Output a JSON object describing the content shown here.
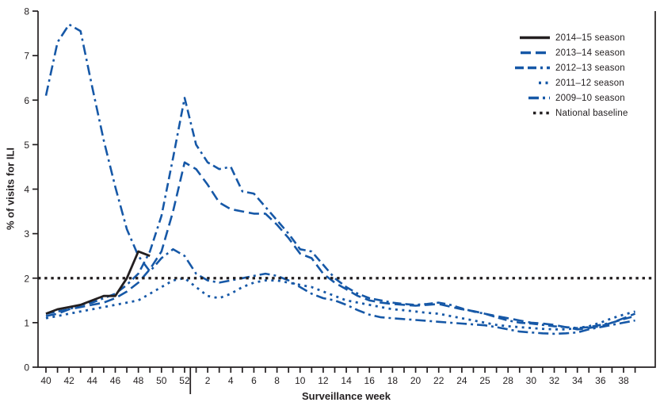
{
  "chart_data": {
    "type": "line",
    "title": "",
    "xlabel": "Surveillance week",
    "ylabel": "% of visits for ILI",
    "ylim": [
      0,
      8
    ],
    "grid": false,
    "legend_position": "top-right",
    "colors": {
      "blue": "#1658a7",
      "black": "#231f20"
    },
    "y_ticks": [
      0,
      1,
      2,
      3,
      4,
      5,
      6,
      7,
      8
    ],
    "x_tick_labels": [
      "40",
      "42",
      "44",
      "46",
      "48",
      "50",
      "52",
      "2",
      "4",
      "6",
      "8",
      "10",
      "12",
      "14",
      "16",
      "18",
      "20",
      "22",
      "24",
      "25",
      "28",
      "30",
      "32",
      "34",
      "36",
      "38"
    ],
    "weeks": [
      40,
      41,
      42,
      43,
      44,
      45,
      46,
      47,
      48,
      49,
      50,
      51,
      52,
      1,
      2,
      3,
      4,
      5,
      6,
      7,
      8,
      9,
      10,
      11,
      12,
      13,
      14,
      15,
      16,
      17,
      18,
      19,
      20,
      21,
      22,
      23,
      24,
      25,
      26,
      27,
      28,
      29,
      30,
      31,
      32,
      33,
      34,
      35,
      36,
      37,
      38,
      39
    ],
    "series": [
      {
        "name": "2014–15 season",
        "color": "black",
        "dash": null,
        "width": 2.8,
        "sample_len": 38,
        "values": [
          1.2,
          1.3,
          1.35,
          1.4,
          1.5,
          1.6,
          1.6,
          2.0,
          2.6,
          2.5,
          null,
          null,
          null,
          null,
          null,
          null,
          null,
          null,
          null,
          null,
          null,
          null,
          null,
          null,
          null,
          null,
          null,
          null,
          null,
          null,
          null,
          null,
          null,
          null,
          null,
          null,
          null,
          null,
          null,
          null,
          null,
          null,
          null,
          null,
          null,
          null,
          null,
          null,
          null,
          null,
          null,
          null
        ]
      },
      {
        "name": "2013–14 season",
        "color": "blue",
        "dash": "13 6",
        "width": 2.6,
        "sample_len": 37,
        "values": [
          1.15,
          1.2,
          1.3,
          1.35,
          1.4,
          1.45,
          1.55,
          1.7,
          1.9,
          2.2,
          2.6,
          3.5,
          4.6,
          4.45,
          4.1,
          3.7,
          3.55,
          3.5,
          3.45,
          3.45,
          3.2,
          2.9,
          2.55,
          2.45,
          2.1,
          1.9,
          1.75,
          1.6,
          1.5,
          1.45,
          1.42,
          1.4,
          1.38,
          1.4,
          1.42,
          1.36,
          1.3,
          1.26,
          1.2,
          1.15,
          1.1,
          1.05,
          1.0,
          0.98,
          0.95,
          0.9,
          0.85,
          0.88,
          0.92,
          1.0,
          1.1,
          1.2
        ]
      },
      {
        "name": "2012–13 season",
        "color": "blue",
        "dash": "11 5 11 5 3 5",
        "width": 2.6,
        "sample_len": 44,
        "values": [
          1.2,
          1.25,
          1.3,
          1.4,
          1.45,
          1.55,
          1.65,
          1.85,
          2.1,
          2.6,
          3.4,
          4.7,
          6.05,
          5.0,
          4.6,
          4.45,
          4.5,
          3.95,
          3.9,
          3.6,
          3.3,
          3.0,
          2.65,
          2.6,
          2.3,
          2.0,
          1.8,
          1.65,
          1.55,
          1.5,
          1.45,
          1.42,
          1.4,
          1.42,
          1.45,
          1.4,
          1.32,
          1.25,
          1.2,
          1.12,
          1.05,
          1.0,
          0.98,
          0.95,
          0.92,
          0.9,
          0.88,
          0.9,
          0.95,
          1.0,
          1.08,
          1.15
        ]
      },
      {
        "name": "2011–12 season",
        "color": "blue",
        "dash": "3 5.5",
        "width": 2.8,
        "sample_len": 14,
        "values": [
          1.1,
          1.15,
          1.2,
          1.25,
          1.3,
          1.35,
          1.4,
          1.45,
          1.5,
          1.65,
          1.8,
          1.95,
          2.0,
          1.8,
          1.6,
          1.55,
          1.65,
          1.8,
          1.9,
          1.95,
          1.95,
          1.9,
          1.85,
          1.8,
          1.7,
          1.6,
          1.5,
          1.45,
          1.4,
          1.35,
          1.3,
          1.28,
          1.25,
          1.22,
          1.2,
          1.15,
          1.1,
          1.05,
          1.0,
          0.95,
          0.92,
          0.9,
          0.88,
          0.86,
          0.85,
          0.85,
          0.88,
          0.92,
          1.0,
          1.1,
          1.18,
          1.25
        ]
      },
      {
        "name": "2009–10 season",
        "color": "blue",
        "dash": "13 5 3 5",
        "width": 2.6,
        "sample_len": 27,
        "values": [
          6.1,
          7.3,
          7.7,
          7.55,
          6.3,
          5.1,
          4.05,
          3.1,
          2.5,
          2.15,
          2.45,
          2.65,
          2.5,
          2.1,
          1.95,
          1.9,
          1.95,
          2.0,
          2.05,
          2.1,
          2.05,
          1.95,
          1.8,
          1.65,
          1.55,
          1.5,
          1.4,
          1.28,
          1.18,
          1.12,
          1.1,
          1.08,
          1.06,
          1.04,
          1.02,
          1.0,
          0.98,
          0.96,
          0.94,
          0.9,
          0.85,
          0.8,
          0.78,
          0.76,
          0.75,
          0.76,
          0.78,
          0.85,
          0.9,
          0.95,
          1.0,
          1.05
        ]
      },
      {
        "name": "National baseline",
        "color": "black",
        "dash": "3.4 4.8",
        "width": 3.2,
        "sample_len": 21,
        "baseline_value": 2.0
      }
    ]
  }
}
